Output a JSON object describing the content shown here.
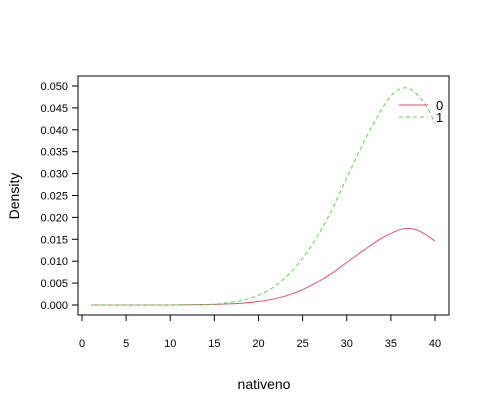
{
  "chart_data": {
    "type": "line",
    "title": "",
    "xlabel": "nativeno",
    "ylabel": "Density",
    "xlim": [
      0,
      40
    ],
    "ylim": [
      0,
      0.05
    ],
    "x_ticks": [
      0,
      5,
      10,
      15,
      20,
      25,
      30,
      35,
      40
    ],
    "y_ticks": [
      0.0,
      0.005,
      0.01,
      0.015,
      0.02,
      0.025,
      0.03,
      0.035,
      0.04,
      0.045,
      0.05
    ],
    "x_tick_labels": [
      "0",
      "5",
      "10",
      "15",
      "20",
      "25",
      "30",
      "35",
      "40"
    ],
    "y_tick_labels": [
      "0.000",
      "0.005",
      "0.010",
      "0.015",
      "0.020",
      "0.025",
      "0.030",
      "0.035",
      "0.040",
      "0.045",
      "0.050"
    ],
    "grid": false,
    "legend_position": "top-right",
    "series": [
      {
        "name": "0",
        "color": "#df536b",
        "style": "solid",
        "x": [
          1,
          5,
          10,
          14,
          16,
          18,
          20,
          22,
          24,
          26,
          28,
          30,
          32,
          34,
          36,
          37,
          38,
          39,
          40
        ],
        "y": [
          0.0,
          0.0,
          0.0,
          0.0001,
          0.0002,
          0.0004,
          0.0008,
          0.0015,
          0.0027,
          0.0045,
          0.0068,
          0.0097,
          0.0126,
          0.0153,
          0.0172,
          0.0175,
          0.0171,
          0.016,
          0.0146
        ]
      },
      {
        "name": "1",
        "color": "#61d04f",
        "style": "dashed",
        "x": [
          1,
          5,
          10,
          14,
          15,
          16,
          18,
          20,
          22,
          24,
          26,
          28,
          30,
          32,
          34,
          35,
          36,
          37,
          38,
          39,
          40
        ],
        "y": [
          0.0,
          0.0,
          0.0,
          0.0001,
          0.0002,
          0.0004,
          0.001,
          0.0022,
          0.0045,
          0.0082,
          0.0135,
          0.0205,
          0.029,
          0.0375,
          0.0448,
          0.0477,
          0.0493,
          0.0495,
          0.048,
          0.0455,
          0.0415
        ]
      }
    ]
  }
}
